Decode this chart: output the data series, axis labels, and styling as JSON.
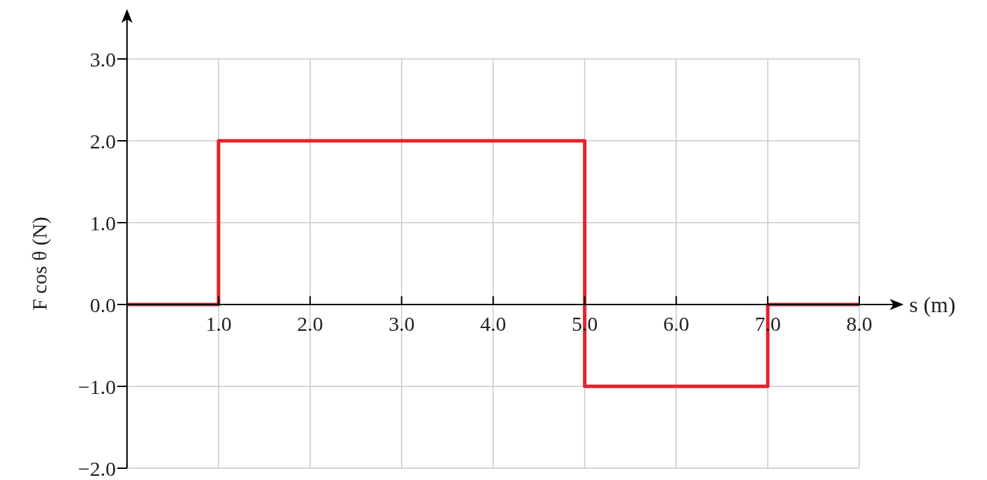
{
  "chart_data": {
    "type": "step",
    "xlabel": "s (m)",
    "ylabel": "F cos θ (N)",
    "x": [
      0,
      1,
      5,
      7,
      8
    ],
    "series": [
      {
        "color": "#e8202a",
        "values": [
          0,
          2,
          -1,
          0,
          0
        ]
      }
    ],
    "xlim": [
      0,
      8
    ],
    "ylim": [
      -2,
      3
    ],
    "xticks": [
      {
        "value": 1,
        "label": "1.0"
      },
      {
        "value": 2,
        "label": "2.0"
      },
      {
        "value": 3,
        "label": "3.0"
      },
      {
        "value": 4,
        "label": "4.0"
      },
      {
        "value": 5,
        "label": "5.0"
      },
      {
        "value": 6,
        "label": "6.0"
      },
      {
        "value": 7,
        "label": "7.0"
      },
      {
        "value": 8,
        "label": "8.0"
      }
    ],
    "yticks": [
      {
        "value": -2,
        "label": "−2.0"
      },
      {
        "value": -1,
        "label": "−1.0"
      },
      {
        "value": 0,
        "label": "0.0"
      },
      {
        "value": 1,
        "label": "1.0"
      },
      {
        "value": 2,
        "label": "2.0"
      },
      {
        "value": 3,
        "label": "3.0"
      }
    ],
    "grid": true,
    "marker": "none",
    "line_style": "solid"
  }
}
